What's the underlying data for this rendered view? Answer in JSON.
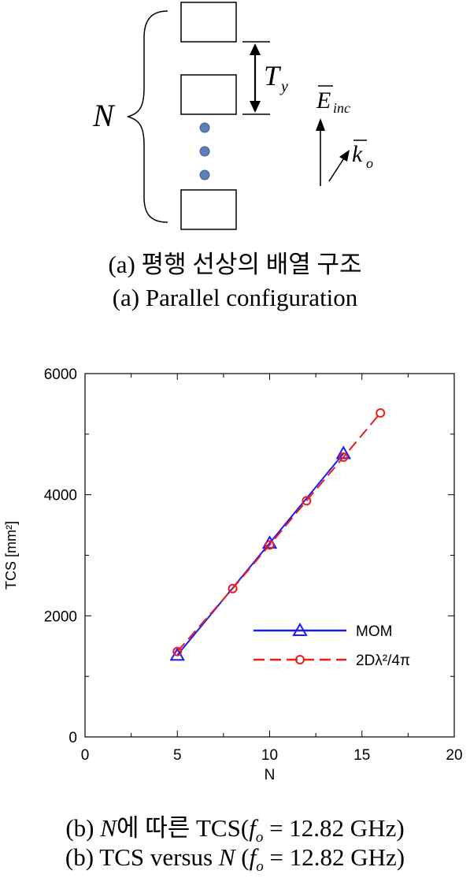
{
  "figure_a": {
    "n_label": "N",
    "ty_label": "T",
    "ty_sub": "y",
    "e_label": "E",
    "e_sub": "inc",
    "k_label": "k",
    "k_sub": "o",
    "caption_ko": "(a) 평행 선상의 배열 구조",
    "caption_en": "(a) Parallel configuration"
  },
  "figure_b": {
    "caption_ko_prefix": "(b) ",
    "caption_ko_n": "N",
    "caption_ko_mid": "에 따른 TCS(",
    "caption_ko_f": "f",
    "caption_ko_fsub": "o",
    "caption_ko_tail": " = 12.82 GHz)",
    "caption_en_prefix": "(b) TCS versus ",
    "caption_en_n": "N",
    "caption_en_mid": " (",
    "caption_en_f": "f",
    "caption_en_fsub": "o",
    "caption_en_tail": " = 12.82 GHz)"
  },
  "chart_data": {
    "type": "line",
    "xlabel": "N",
    "ylabel": "TCS [mm²]",
    "xlim": [
      0,
      20
    ],
    "ylim": [
      0,
      6000
    ],
    "x_ticks": [
      0,
      5,
      10,
      15,
      20
    ],
    "y_ticks": [
      0,
      2000,
      4000,
      6000
    ],
    "grid": false,
    "legend_position": "bottom-right",
    "series": [
      {
        "name": "MOM",
        "color": "#1a1aff",
        "line": "solid",
        "marker": "triangle",
        "x": [
          5,
          10,
          14
        ],
        "y": [
          1350,
          3200,
          4680
        ]
      },
      {
        "name": "2Dλ²/4π",
        "color": "#ee1c1c",
        "line": "dashed",
        "marker": "circle",
        "x": [
          5,
          8,
          10,
          12,
          14,
          16
        ],
        "y": [
          1410,
          2450,
          3170,
          3900,
          4620,
          5350
        ]
      }
    ]
  }
}
